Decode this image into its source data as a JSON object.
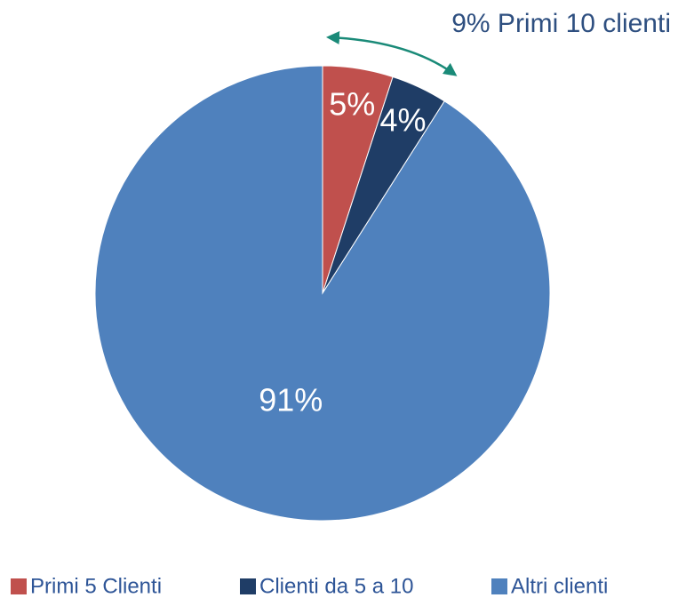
{
  "chart_data": {
    "type": "pie",
    "annotation": "9% Primi 10 clienti",
    "categories": [
      "Primi 5 Clienti",
      "Clienti da 5 a 10",
      "Altri clienti"
    ],
    "values": [
      5,
      4,
      91
    ],
    "value_labels": [
      "5%",
      "4%",
      "91%"
    ],
    "colors": [
      "#c0504d",
      "#1f3d66",
      "#4f81bd"
    ],
    "legend": "bottom"
  }
}
